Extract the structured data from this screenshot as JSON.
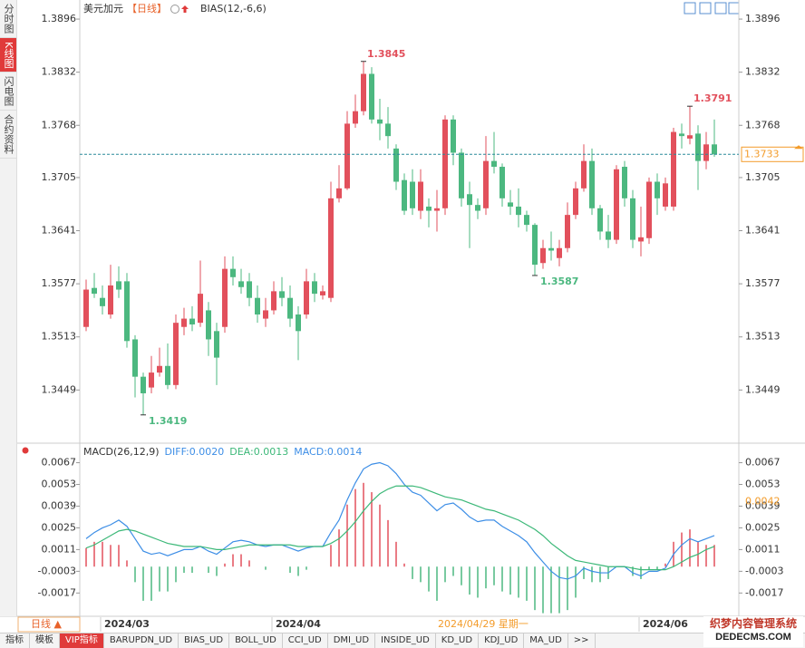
{
  "sidebar": [
    "分时图",
    "K线图",
    "闪电图",
    "合约资料"
  ],
  "chart_data": [
    {
      "type": "candlestick",
      "title": "美元加元",
      "period": "【日线】",
      "indicator": "BIAS(12,-6,6)",
      "categories": [
        null,
        null,
        "2024/03",
        null,
        null,
        null,
        null,
        null,
        null,
        null,
        null,
        null,
        null,
        null,
        null,
        null,
        null,
        null,
        null,
        null,
        null,
        null,
        null,
        "2024/04",
        null,
        null,
        null,
        null,
        null,
        null,
        null,
        null,
        null,
        null,
        null,
        null,
        null,
        null,
        null,
        null,
        null,
        null,
        null,
        null,
        null,
        null,
        null,
        null,
        null,
        null,
        null,
        null,
        null,
        null,
        null,
        null,
        null,
        null,
        null,
        null,
        null,
        null,
        null,
        null,
        null,
        null,
        null,
        null,
        "2024/06",
        null,
        null,
        null,
        null,
        null,
        null,
        null,
        null,
        null
      ],
      "open": [
        1.3525,
        1.3572,
        1.356,
        1.354,
        1.358,
        1.358,
        1.351,
        1.3465,
        1.3452,
        1.347,
        1.3478,
        1.3455,
        1.3525,
        1.3535,
        1.353,
        1.3545,
        1.352,
        1.3525,
        1.3595,
        1.358,
        1.358,
        1.356,
        1.3535,
        1.3545,
        1.3568,
        1.356,
        1.354,
        1.354,
        1.358,
        1.3563,
        1.356,
        1.368,
        1.3692,
        1.377,
        1.3785,
        1.383,
        1.3775,
        1.377,
        1.374,
        1.3702,
        1.37,
        1.3665,
        1.367,
        1.3665,
        1.3668,
        1.3775,
        1.3735,
        1.3685,
        1.3672,
        1.3668,
        1.3725,
        1.3718,
        1.3675,
        1.367,
        1.366,
        1.3648,
        1.3602,
        1.362,
        1.3608,
        1.362,
        1.366,
        1.3692,
        1.3725,
        1.3668,
        1.364,
        1.363,
        1.3718,
        1.368,
        1.3628,
        1.3632,
        1.37,
        1.367,
        1.367,
        1.3758,
        1.3752,
        1.3758,
        1.3725,
        1.3745
      ],
      "high": [
        1.3582,
        1.359,
        1.3575,
        1.36,
        1.3598,
        1.359,
        1.3515,
        1.347,
        1.349,
        1.35,
        1.3505,
        1.354,
        1.3548,
        1.355,
        1.3605,
        1.3555,
        1.353,
        1.361,
        1.361,
        1.3595,
        1.359,
        1.3575,
        1.356,
        1.358,
        1.3585,
        1.3575,
        1.355,
        1.3595,
        1.359,
        1.3575,
        1.37,
        1.372,
        1.3785,
        1.3805,
        1.3845,
        1.3838,
        1.38,
        1.379,
        1.3745,
        1.371,
        1.3715,
        1.3715,
        1.368,
        1.369,
        1.378,
        1.378,
        1.374,
        1.37,
        1.368,
        1.3755,
        1.376,
        1.3722,
        1.369,
        1.3692,
        1.3665,
        1.365,
        1.363,
        1.364,
        1.363,
        1.3675,
        1.37,
        1.3745,
        1.374,
        1.3672,
        1.366,
        1.372,
        1.3725,
        1.369,
        1.367,
        1.3705,
        1.371,
        1.3705,
        1.3765,
        1.377,
        1.3791,
        1.3768,
        1.376,
        1.3775
      ],
      "low": [
        1.352,
        1.356,
        1.354,
        1.3535,
        1.356,
        1.35,
        1.344,
        1.3419,
        1.3445,
        1.3465,
        1.345,
        1.345,
        1.3515,
        1.352,
        1.3525,
        1.349,
        1.3455,
        1.3518,
        1.3575,
        1.3565,
        1.355,
        1.353,
        1.3525,
        1.354,
        1.355,
        1.3525,
        1.3485,
        1.3535,
        1.3555,
        1.3558,
        1.3555,
        1.3675,
        1.369,
        1.3765,
        1.378,
        1.377,
        1.375,
        1.374,
        1.369,
        1.366,
        1.366,
        1.3655,
        1.3645,
        1.364,
        1.366,
        1.372,
        1.367,
        1.362,
        1.3655,
        1.366,
        1.371,
        1.367,
        1.366,
        1.3645,
        1.364,
        1.3587,
        1.3595,
        1.3605,
        1.3598,
        1.3615,
        1.3655,
        1.3688,
        1.366,
        1.363,
        1.362,
        1.3625,
        1.367,
        1.362,
        1.361,
        1.3625,
        1.366,
        1.3665,
        1.3665,
        1.374,
        1.3745,
        1.369,
        1.3715,
        1.373
      ],
      "close": [
        1.357,
        1.3565,
        1.355,
        1.3575,
        1.357,
        1.3508,
        1.3465,
        1.3445,
        1.347,
        1.3478,
        1.3455,
        1.353,
        1.3535,
        1.3528,
        1.3565,
        1.351,
        1.3488,
        1.3595,
        1.3585,
        1.3573,
        1.356,
        1.354,
        1.3545,
        1.3568,
        1.356,
        1.3535,
        1.352,
        1.358,
        1.3565,
        1.3568,
        1.368,
        1.3692,
        1.377,
        1.3785,
        1.383,
        1.3775,
        1.377,
        1.3755,
        1.37,
        1.3665,
        1.3668,
        1.37,
        1.3665,
        1.3668,
        1.3775,
        1.3735,
        1.368,
        1.3672,
        1.3665,
        1.3725,
        1.3718,
        1.368,
        1.367,
        1.366,
        1.3648,
        1.36,
        1.362,
        1.3617,
        1.362,
        1.366,
        1.3692,
        1.3725,
        1.3668,
        1.364,
        1.363,
        1.3715,
        1.368,
        1.363,
        1.3633,
        1.37,
        1.368,
        1.3698,
        1.376,
        1.3755,
        1.3756,
        1.3725,
        1.3745,
        1.3733
      ],
      "up_color": "#e2505c",
      "down_color": "#4cb880",
      "marked": {
        "high": [
          34,
          74
        ],
        "low": [
          7,
          55
        ]
      },
      "last_price": 1.3733,
      "ylim": [
        1.3386,
        1.3919
      ],
      "yticks": [
        1.3896,
        1.3832,
        1.3768,
        1.3705,
        1.3641,
        1.3577,
        1.3513,
        1.3449
      ],
      "period_selector": "日线 ▲",
      "cursor_date": "2024/04/29 星期一"
    },
    {
      "type": "macd",
      "legend": [
        "MACD(26,12,9)",
        "DIFF:0.0020",
        "DEA:0.0013",
        "MACD:0.0014"
      ],
      "series": [
        {
          "name": "DIFF",
          "color": "#3d8ee6",
          "values": [
            0.0018,
            0.0022,
            0.0025,
            0.0027,
            0.003,
            0.0026,
            0.0018,
            0.001,
            0.0008,
            0.0009,
            0.0007,
            0.0009,
            0.0011,
            0.0011,
            0.0013,
            0.001,
            0.0008,
            0.0012,
            0.0016,
            0.0017,
            0.0016,
            0.0014,
            0.0013,
            0.0014,
            0.0014,
            0.0012,
            0.001,
            0.0012,
            0.0013,
            0.0013,
            0.0022,
            0.003,
            0.0043,
            0.0054,
            0.0063,
            0.0066,
            0.0067,
            0.0065,
            0.006,
            0.0053,
            0.0048,
            0.0046,
            0.0041,
            0.0036,
            0.004,
            0.0041,
            0.0037,
            0.0032,
            0.0029,
            0.003,
            0.003,
            0.0026,
            0.0023,
            0.002,
            0.0016,
            0.0009,
            0.0003,
            -0.0003,
            -0.0007,
            -0.0008,
            -0.0006,
            -0.0001,
            -0.0003,
            -0.0004,
            -0.0004,
            0.0,
            0.0,
            -0.0004,
            -0.0006,
            -0.0003,
            -0.0003,
            -0.0001,
            0.0008,
            0.0014,
            0.0018,
            0.0016,
            0.0018,
            0.002
          ]
        },
        {
          "name": "DEA",
          "color": "#3cb878",
          "values": [
            0.0012,
            0.0014,
            0.0017,
            0.002,
            0.0023,
            0.0024,
            0.0023,
            0.0021,
            0.0019,
            0.0017,
            0.0015,
            0.0014,
            0.0013,
            0.0013,
            0.0013,
            0.0012,
            0.0011,
            0.0011,
            0.0012,
            0.0013,
            0.0014,
            0.0014,
            0.0014,
            0.0014,
            0.0014,
            0.0014,
            0.0013,
            0.0013,
            0.0013,
            0.0013,
            0.0015,
            0.0018,
            0.0023,
            0.0029,
            0.0036,
            0.0042,
            0.0047,
            0.005,
            0.0052,
            0.0052,
            0.0052,
            0.0051,
            0.0049,
            0.0047,
            0.0045,
            0.0044,
            0.0043,
            0.0041,
            0.0039,
            0.0037,
            0.0036,
            0.0034,
            0.0032,
            0.003,
            0.0027,
            0.0024,
            0.002,
            0.0015,
            0.0011,
            0.0007,
            0.0004,
            0.0003,
            0.0002,
            0.0001,
            0.0,
            0.0,
            0.0,
            -0.0001,
            -0.0002,
            -0.0002,
            -0.0002,
            -0.0002,
            0.0,
            0.0003,
            0.0006,
            0.0008,
            0.0011,
            0.0013
          ]
        }
      ],
      "histogram": [
        0.0012,
        0.0016,
        0.0016,
        0.0014,
        0.0014,
        0.0004,
        -0.001,
        -0.0022,
        -0.0022,
        -0.0016,
        -0.0016,
        -0.001,
        -0.0004,
        -0.0004,
        0.0,
        -0.0004,
        -0.0006,
        0.0002,
        0.0008,
        0.0008,
        0.0004,
        0.0,
        -0.0002,
        0.0,
        0.0,
        -0.0004,
        -0.0006,
        -0.0002,
        0.0,
        0.0,
        0.0014,
        0.0024,
        0.004,
        0.005,
        0.0054,
        0.0048,
        0.004,
        0.003,
        0.0016,
        0.0002,
        -0.0008,
        -0.001,
        -0.0016,
        -0.0022,
        -0.001,
        -0.0006,
        -0.0012,
        -0.0018,
        -0.002,
        -0.0014,
        -0.0012,
        -0.0016,
        -0.0018,
        -0.002,
        -0.0022,
        -0.0028,
        -0.003,
        -0.003,
        -0.003,
        -0.0028,
        -0.002,
        -0.0008,
        -0.001,
        -0.001,
        -0.0008,
        0.0,
        0.0,
        -0.0006,
        -0.0008,
        -0.0002,
        -0.0002,
        0.0002,
        0.0016,
        0.0022,
        0.0024,
        0.0016,
        0.0014,
        0.0014
      ],
      "cursor_value": 0.0042,
      "ylim": [
        -0.0032,
        0.0079
      ],
      "yticks": [
        0.0067,
        0.0053,
        0.0039,
        0.0025,
        0.0011,
        -0.0003,
        -0.0017
      ]
    }
  ],
  "toolbar": [
    "指标",
    "模板",
    "VIP指标",
    "BARUPDN_UD",
    "BIAS_UD",
    "BOLL_UD",
    "CCI_UD",
    "DMI_UD",
    "INSIDE_UD",
    "KD_UD",
    "KDJ_UD",
    "MA_UD",
    ">>"
  ],
  "watermark": [
    "织梦内容管理系统",
    "DEDECMS.COM"
  ]
}
